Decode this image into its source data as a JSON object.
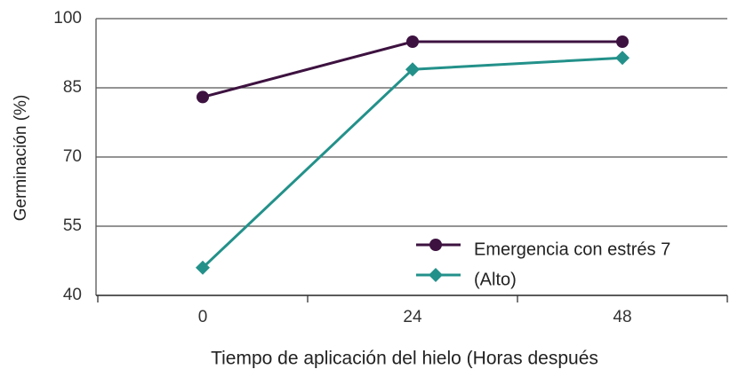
{
  "chart_data": {
    "type": "line",
    "x_label": "Tiempo de aplicación del hielo (Horas después",
    "y_label": "Germinación (%)",
    "categories": [
      "0",
      "24",
      "48"
    ],
    "series": [
      {
        "name": "Emergencia con estrés 7",
        "color": "#3d1240",
        "marker": "circle",
        "values": [
          83,
          95,
          95
        ]
      },
      {
        "name": "(Alto)",
        "color": "#23918a",
        "marker": "diamond",
        "values": [
          46,
          89,
          91.5
        ]
      }
    ],
    "ylim": [
      40,
      100
    ],
    "yticks": [
      40,
      55,
      70,
      85,
      100
    ],
    "grid": true
  }
}
